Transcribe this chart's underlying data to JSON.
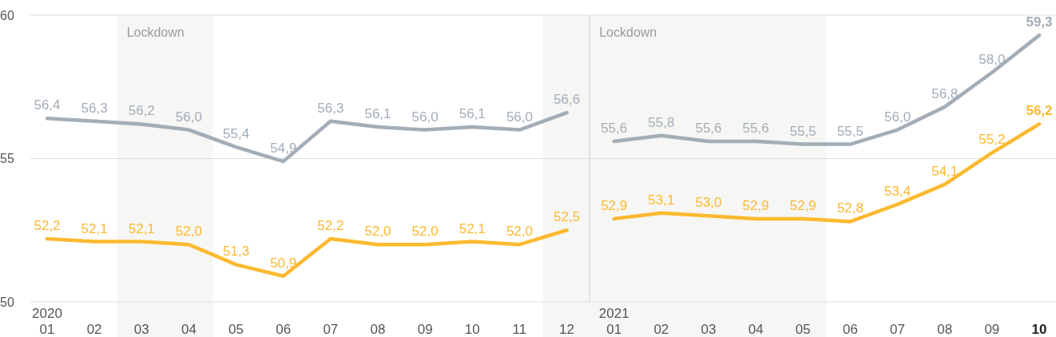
{
  "chart_data": {
    "type": "line",
    "xlim": [
      "2019-12-21",
      "2021-10-12"
    ],
    "ylim": [
      50,
      60
    ],
    "yticks": [
      50,
      55,
      60
    ],
    "grid": "y",
    "xticks": [
      {
        "value": "2020-01",
        "label": "2020\n01"
      },
      {
        "value": "2020-02",
        "label": "02"
      },
      {
        "value": "2020-03",
        "label": "03"
      },
      {
        "value": "2020-04",
        "label": "04"
      },
      {
        "value": "2020-05",
        "label": "05"
      },
      {
        "value": "2020-06",
        "label": "06"
      },
      {
        "value": "2020-07",
        "label": "07"
      },
      {
        "value": "2020-08",
        "label": "08"
      },
      {
        "value": "2020-09",
        "label": "09"
      },
      {
        "value": "2020-10",
        "label": "10"
      },
      {
        "value": "2020-11",
        "label": "11"
      },
      {
        "value": "2020-12",
        "label": "12"
      },
      {
        "value": "2021-01",
        "label": "2021\n01"
      },
      {
        "value": "2021-02",
        "label": "02"
      },
      {
        "value": "2021-03",
        "label": "03"
      },
      {
        "value": "2021-04",
        "label": "04"
      },
      {
        "value": "2021-05",
        "label": "05"
      },
      {
        "value": "2021-06",
        "label": "06"
      },
      {
        "value": "2021-07",
        "label": "07"
      },
      {
        "value": "2021-08",
        "label": "08"
      },
      {
        "value": "2021-09",
        "label": "09"
      },
      {
        "value": "2021-10",
        "label": "10"
      }
    ],
    "bands": [
      {
        "axis": "x",
        "from": "2020-02-15",
        "to": "2020-04-16",
        "label": "Lockdown",
        "color": "#f6f6f4"
      },
      {
        "axis": "x",
        "from": "2020-11-16",
        "to": "2021-05-16",
        "label": "Lockdown",
        "color": "#f6f6f4"
      }
    ],
    "ref_lines": [
      {
        "axis": "x",
        "value": "2020-12-16",
        "color": "#d4d4d4"
      }
    ],
    "series": [
      {
        "color": "#a3adb8",
        "x": [
          "2020-01",
          "2020-02",
          "2020-03",
          "2020-04",
          "2020-05",
          "2020-06",
          "2020-07",
          "2020-08",
          "2020-09",
          "2020-10",
          "2020-11",
          "2020-12"
        ],
        "values": [
          56.4,
          56.3,
          56.2,
          56.0,
          55.4,
          54.9,
          56.3,
          56.1,
          56.0,
          56.1,
          56.0,
          56.6
        ],
        "value_labels": [
          "56,4",
          "56,3",
          "56,2",
          "56,0",
          "55,4",
          "54,9",
          "56,3",
          "56,1",
          "56,0",
          "56,1",
          "56,0",
          "56,6"
        ]
      },
      {
        "color": "#fcb92f",
        "x": [
          "2020-01",
          "2020-02",
          "2020-03",
          "2020-04",
          "2020-05",
          "2020-06",
          "2020-07",
          "2020-08",
          "2020-09",
          "2020-10",
          "2020-11",
          "2020-12"
        ],
        "values": [
          52.2,
          52.1,
          52.1,
          52.0,
          51.3,
          50.9,
          52.2,
          52.0,
          52.0,
          52.1,
          52.0,
          52.5
        ],
        "value_labels": [
          "52,2",
          "52,1",
          "52,1",
          "52,0",
          "51,3",
          "50,9",
          "52,2",
          "52,0",
          "52,0",
          "52,1",
          "52,0",
          "52,5"
        ]
      },
      {
        "color": "#a3adb8",
        "x": [
          "2021-01",
          "2021-02",
          "2021-03",
          "2021-04",
          "2021-05",
          "2021-06",
          "2021-07",
          "2021-08",
          "2021-09",
          "2021-10"
        ],
        "values": [
          55.6,
          55.8,
          55.6,
          55.6,
          55.5,
          55.5,
          56.0,
          56.8,
          58.0,
          59.3
        ],
        "value_labels": [
          "55,6",
          "55,8",
          "55,6",
          "55,6",
          "55,5",
          "55,5",
          "56,0",
          "56,8",
          "58,0",
          "59,3"
        ]
      },
      {
        "color": "#fcb92f",
        "x": [
          "2021-01",
          "2021-02",
          "2021-03",
          "2021-04",
          "2021-05",
          "2021-06",
          "2021-07",
          "2021-08",
          "2021-09",
          "2021-10"
        ],
        "values": [
          52.9,
          53.1,
          53.0,
          52.9,
          52.9,
          52.8,
          53.4,
          54.1,
          55.2,
          56.2
        ],
        "value_labels": [
          "52,9",
          "53,1",
          "53,0",
          "52,9",
          "52,9",
          "52,8",
          "53,4",
          "54,1",
          "55,2",
          "56,2"
        ]
      }
    ]
  }
}
